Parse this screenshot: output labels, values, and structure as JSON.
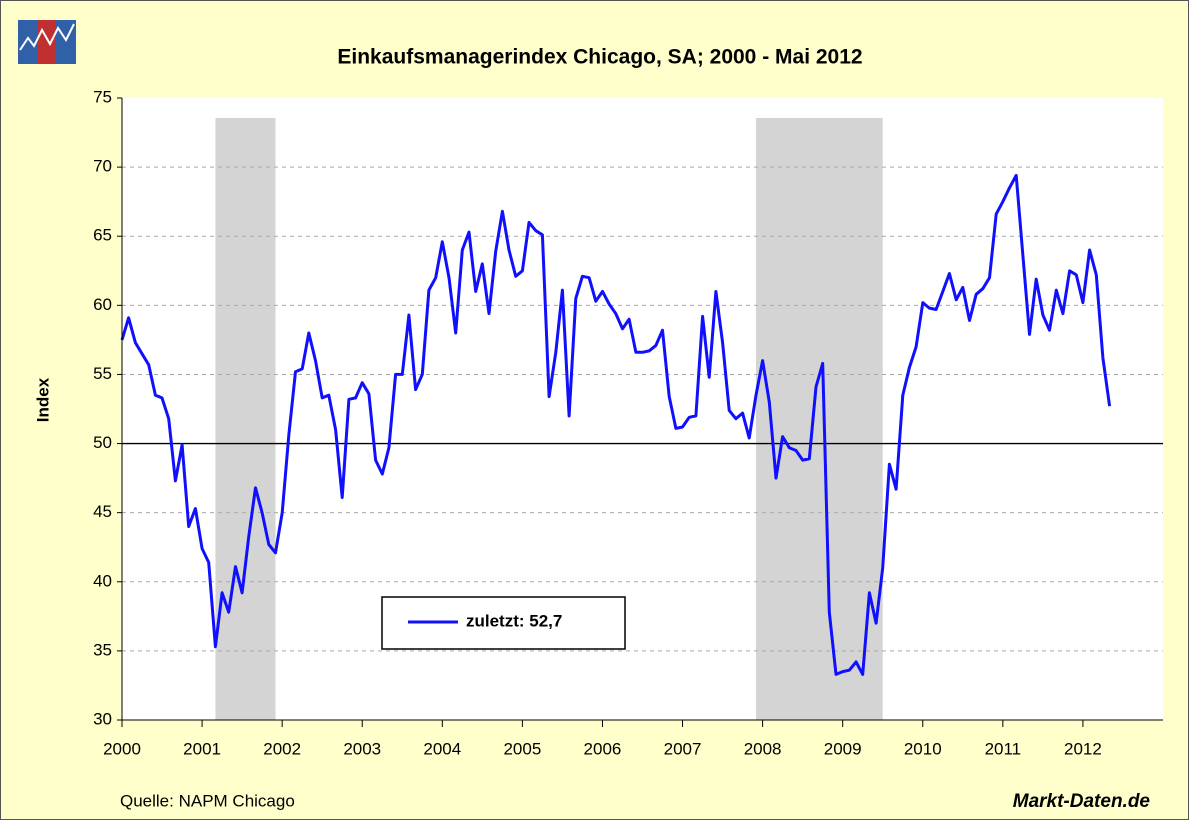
{
  "chart_data": {
    "type": "line",
    "title": "Einkaufsmanagerindex Chicago, SA; 2000 - Mai 2012",
    "y_label": "Index",
    "source": "Quelle: NAPM Chicago",
    "brand": "Markt-Daten.de",
    "xlim": [
      2000,
      2013
    ],
    "xticks": [
      2000,
      2001,
      2002,
      2003,
      2004,
      2005,
      2006,
      2007,
      2008,
      2009,
      2010,
      2011,
      2012
    ],
    "ylim": [
      30,
      75
    ],
    "yticks": [
      30,
      35,
      40,
      45,
      50,
      55,
      60,
      65,
      70,
      75
    ],
    "grid": true,
    "reference_line": 50,
    "recessions": [
      [
        2001.167,
        2001.917
      ],
      [
        2007.917,
        2009.5
      ]
    ],
    "x": [
      2000,
      2000.083,
      2000.167,
      2000.25,
      2000.333,
      2000.417,
      2000.5,
      2000.583,
      2000.667,
      2000.75,
      2000.833,
      2000.917,
      2001,
      2001.083,
      2001.167,
      2001.25,
      2001.333,
      2001.417,
      2001.5,
      2001.583,
      2001.667,
      2001.75,
      2001.833,
      2001.917,
      2002,
      2002.083,
      2002.167,
      2002.25,
      2002.333,
      2002.417,
      2002.5,
      2002.583,
      2002.667,
      2002.75,
      2002.833,
      2002.917,
      2003,
      2003.083,
      2003.167,
      2003.25,
      2003.333,
      2003.417,
      2003.5,
      2003.583,
      2003.667,
      2003.75,
      2003.833,
      2003.917,
      2004,
      2004.083,
      2004.167,
      2004.25,
      2004.333,
      2004.417,
      2004.5,
      2004.583,
      2004.667,
      2004.75,
      2004.833,
      2004.917,
      2005,
      2005.083,
      2005.167,
      2005.25,
      2005.333,
      2005.417,
      2005.5,
      2005.583,
      2005.667,
      2005.75,
      2005.833,
      2005.917,
      2006,
      2006.083,
      2006.167,
      2006.25,
      2006.333,
      2006.417,
      2006.5,
      2006.583,
      2006.667,
      2006.75,
      2006.833,
      2006.917,
      2007,
      2007.083,
      2007.167,
      2007.25,
      2007.333,
      2007.417,
      2007.5,
      2007.583,
      2007.667,
      2007.75,
      2007.833,
      2007.917,
      2008,
      2008.083,
      2008.167,
      2008.25,
      2008.333,
      2008.417,
      2008.5,
      2008.583,
      2008.667,
      2008.75,
      2008.833,
      2008.917,
      2009,
      2009.083,
      2009.167,
      2009.25,
      2009.333,
      2009.417,
      2009.5,
      2009.583,
      2009.667,
      2009.75,
      2009.833,
      2009.917,
      2010,
      2010.083,
      2010.167,
      2010.25,
      2010.333,
      2010.417,
      2010.5,
      2010.583,
      2010.667,
      2010.75,
      2010.833,
      2010.917,
      2011,
      2011.083,
      2011.167,
      2011.25,
      2011.333,
      2011.417,
      2011.5,
      2011.583,
      2011.667,
      2011.75,
      2011.833,
      2011.917,
      2012,
      2012.083,
      2012.167,
      2012.25,
      2012.333
    ],
    "series": [
      {
        "name": "zuletzt: 52,7",
        "color": "#1010ff",
        "values": [
          57.5,
          59.1,
          57.3,
          56.5,
          55.7,
          53.5,
          53.3,
          51.8,
          47.3,
          49.9,
          44.0,
          45.3,
          42.4,
          41.4,
          35.3,
          39.2,
          37.8,
          41.1,
          39.2,
          43.3,
          46.8,
          45.0,
          42.7,
          42.1,
          45.0,
          50.6,
          55.2,
          55.4,
          58.0,
          56.0,
          53.3,
          53.5,
          51.0,
          46.1,
          53.2,
          53.3,
          54.4,
          53.6,
          48.8,
          47.8,
          49.7,
          55.0,
          55.0,
          59.3,
          53.9,
          55.0,
          61.1,
          62.0,
          64.6,
          62.0,
          58.0,
          64.0,
          65.3,
          61.0,
          63.0,
          59.4,
          63.9,
          66.8,
          64.0,
          62.1,
          62.5,
          66.0,
          65.4,
          65.1,
          53.4,
          56.6,
          61.1,
          52.0,
          60.5,
          62.1,
          62.0,
          60.3,
          61.0,
          60.1,
          59.4,
          58.3,
          59.0,
          56.6,
          56.6,
          56.7,
          57.1,
          58.2,
          53.4,
          51.1,
          51.2,
          51.9,
          52.0,
          59.2,
          54.8,
          61.0,
          57.3,
          52.4,
          51.8,
          52.2,
          50.4,
          53.5,
          56.0,
          53.0,
          47.5,
          50.5,
          49.7,
          49.5,
          48.8,
          48.9,
          54.1,
          55.8,
          37.8,
          33.3,
          33.5,
          33.6,
          34.2,
          33.3,
          39.2,
          37.0,
          41.0,
          48.5,
          46.7,
          53.5,
          55.5,
          57.0,
          60.2,
          59.8,
          59.7,
          61.0,
          62.3,
          60.4,
          61.3,
          58.9,
          60.8,
          61.2,
          62.0,
          66.6,
          67.5,
          68.5,
          69.4,
          63.6,
          57.9,
          61.9,
          59.3,
          58.2,
          61.1,
          59.4,
          62.5,
          62.2,
          60.2,
          64.0,
          62.2,
          56.2,
          52.7
        ]
      }
    ]
  }
}
